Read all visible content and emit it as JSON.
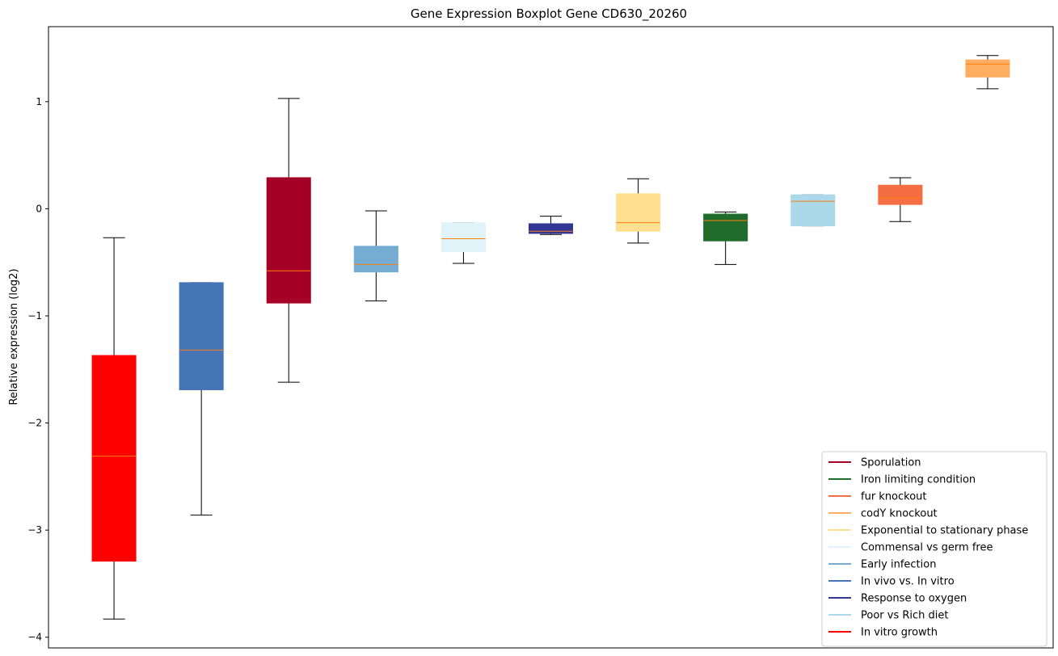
{
  "chart_data": {
    "type": "box",
    "title": "Gene Expression Boxplot Gene CD630_20260",
    "xlabel": "",
    "ylabel": "Relative expression (log2)",
    "ylim": [
      -4.1,
      1.7
    ],
    "yticks": [
      1,
      0,
      -1,
      -2,
      -3,
      -4
    ],
    "ytick_labels": [
      "1",
      "0",
      "−1",
      "−2",
      "−3",
      "−4"
    ],
    "grid": false,
    "legend_position": "lower-right",
    "median_color": "#ff7f0e",
    "boxes": [
      {
        "series": "In vitro growth",
        "color": "#ff0000",
        "whisker_low": -3.83,
        "q1": -3.29,
        "median": -2.31,
        "q3": -1.37,
        "whisker_high": -0.27
      },
      {
        "series": "In vivo vs. In vitro",
        "color": "#4575b7",
        "whisker_low": -2.86,
        "q1": -1.69,
        "median": -1.32,
        "q3": -0.69,
        "whisker_high": -0.69
      },
      {
        "series": "Sporulation",
        "color": "#a50026",
        "whisker_low": -1.62,
        "q1": -0.88,
        "median": -0.58,
        "q3": 0.29,
        "whisker_high": 1.03
      },
      {
        "series": "Early infection",
        "color": "#74add1",
        "whisker_low": -0.86,
        "q1": -0.59,
        "median": -0.52,
        "q3": -0.35,
        "whisker_high": -0.02
      },
      {
        "series": "Commensal vs germ free",
        "color": "#e0f3f8",
        "whisker_low": -0.51,
        "q1": -0.4,
        "median": -0.28,
        "q3": -0.13,
        "whisker_high": -0.13
      },
      {
        "series": "Response to oxygen",
        "color": "#313695",
        "whisker_low": -0.24,
        "q1": -0.23,
        "median": -0.21,
        "q3": -0.14,
        "whisker_high": -0.07
      },
      {
        "series": "Exponential to stationary phase",
        "color": "#fee090",
        "whisker_low": -0.32,
        "q1": -0.21,
        "median": -0.13,
        "q3": 0.14,
        "whisker_high": 0.28
      },
      {
        "series": "Iron limiting condition",
        "color": "#1f6b2a",
        "whisker_low": -0.52,
        "q1": -0.3,
        "median": -0.11,
        "q3": -0.05,
        "whisker_high": -0.03
      },
      {
        "series": "Poor vs Rich diet",
        "color": "#abd9e9",
        "whisker_low": -0.16,
        "q1": -0.16,
        "median": 0.07,
        "q3": 0.13,
        "whisker_high": 0.13
      },
      {
        "series": "fur knockout",
        "color": "#f46d43",
        "whisker_low": -0.12,
        "q1": 0.04,
        "median": 0.1,
        "q3": 0.22,
        "whisker_high": 0.29
      },
      {
        "series": "codY knockout",
        "color": "#fdae61",
        "whisker_low": 1.12,
        "q1": 1.23,
        "median": 1.35,
        "q3": 1.39,
        "whisker_high": 1.43
      }
    ],
    "legend": [
      {
        "label": "Sporulation",
        "color": "#a50026"
      },
      {
        "label": "Iron limiting condition",
        "color": "#1f6b2a"
      },
      {
        "label": "fur knockout",
        "color": "#f46d43"
      },
      {
        "label": "codY knockout",
        "color": "#fdae61"
      },
      {
        "label": "Exponential to stationary phase",
        "color": "#fee090"
      },
      {
        "label": "Commensal vs germ free",
        "color": "#e0f3f8"
      },
      {
        "label": "Early infection",
        "color": "#74add1"
      },
      {
        "label": "In vivo vs. In vitro",
        "color": "#4575b7"
      },
      {
        "label": "Response to oxygen",
        "color": "#313695"
      },
      {
        "label": "Poor vs Rich diet",
        "color": "#abd9e9"
      },
      {
        "label": "In vitro growth",
        "color": "#ff0000"
      }
    ]
  }
}
